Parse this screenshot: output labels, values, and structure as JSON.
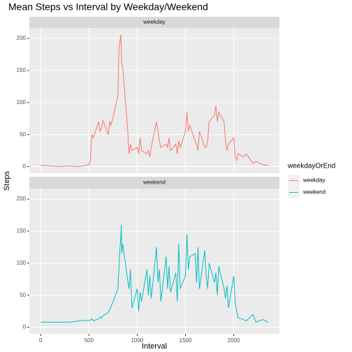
{
  "chart_data": {
    "type": "line",
    "title": "Mean Steps vs Interval by Weekday/Weekend",
    "x_label": "Interval",
    "y_label": "Steps",
    "legend_title": "weekdayOrEnd",
    "legend": "right",
    "grid": true,
    "x": [
      0,
      100,
      200,
      300,
      400,
      500,
      515,
      530,
      545,
      600,
      615,
      630,
      645,
      700,
      715,
      730,
      745,
      800,
      810,
      820,
      830,
      835,
      840,
      850,
      900,
      915,
      930,
      945,
      1000,
      1015,
      1030,
      1045,
      1100,
      1115,
      1130,
      1145,
      1200,
      1215,
      1230,
      1245,
      1300,
      1315,
      1330,
      1345,
      1400,
      1415,
      1430,
      1445,
      1500,
      1515,
      1530,
      1545,
      1600,
      1615,
      1630,
      1645,
      1700,
      1715,
      1730,
      1745,
      1800,
      1815,
      1830,
      1845,
      1900,
      1915,
      1930,
      1945,
      2000,
      2015,
      2030,
      2045,
      2100,
      2130,
      2200,
      2230,
      2300,
      2355
    ],
    "series": [
      {
        "name": "weekday",
        "color": "#F8766D",
        "values": [
          2,
          1,
          0,
          1,
          0,
          3,
          10,
          50,
          45,
          70,
          55,
          60,
          72,
          50,
          70,
          65,
          75,
          110,
          180,
          195,
          206,
          185,
          160,
          155,
          60,
          20,
          35,
          25,
          30,
          20,
          45,
          25,
          20,
          25,
          15,
          30,
          70,
          55,
          40,
          30,
          35,
          30,
          45,
          25,
          35,
          20,
          40,
          30,
          55,
          85,
          55,
          65,
          40,
          35,
          25,
          55,
          30,
          30,
          40,
          70,
          80,
          95,
          70,
          85,
          70,
          40,
          25,
          35,
          45,
          15,
          10,
          20,
          15,
          20,
          5,
          8,
          3,
          2
        ]
      },
      {
        "name": "weekend",
        "color": "#00BFC4",
        "values": [
          8,
          8,
          8,
          8,
          10,
          11,
          11,
          13,
          10,
          13,
          16,
          14,
          18,
          23,
          28,
          33,
          38,
          60,
          90,
          120,
          140,
          160,
          115,
          130,
          75,
          60,
          90,
          30,
          60,
          25,
          55,
          40,
          90,
          50,
          80,
          45,
          125,
          70,
          90,
          40,
          110,
          60,
          95,
          55,
          85,
          40,
          130,
          60,
          80,
          145,
          90,
          110,
          115,
          70,
          125,
          60,
          120,
          80,
          60,
          100,
          70,
          85,
          50,
          95,
          60,
          45,
          65,
          30,
          80,
          40,
          25,
          15,
          12,
          10,
          20,
          8,
          12,
          8
        ]
      }
    ],
    "xlim": [
      -117.75,
      2472.75
    ],
    "xticks": [
      0,
      500,
      1000,
      1500,
      2000
    ],
    "ylim": [
      -10.3,
      216.5
    ],
    "yticks": [
      0,
      50,
      100,
      150,
      200
    ]
  }
}
